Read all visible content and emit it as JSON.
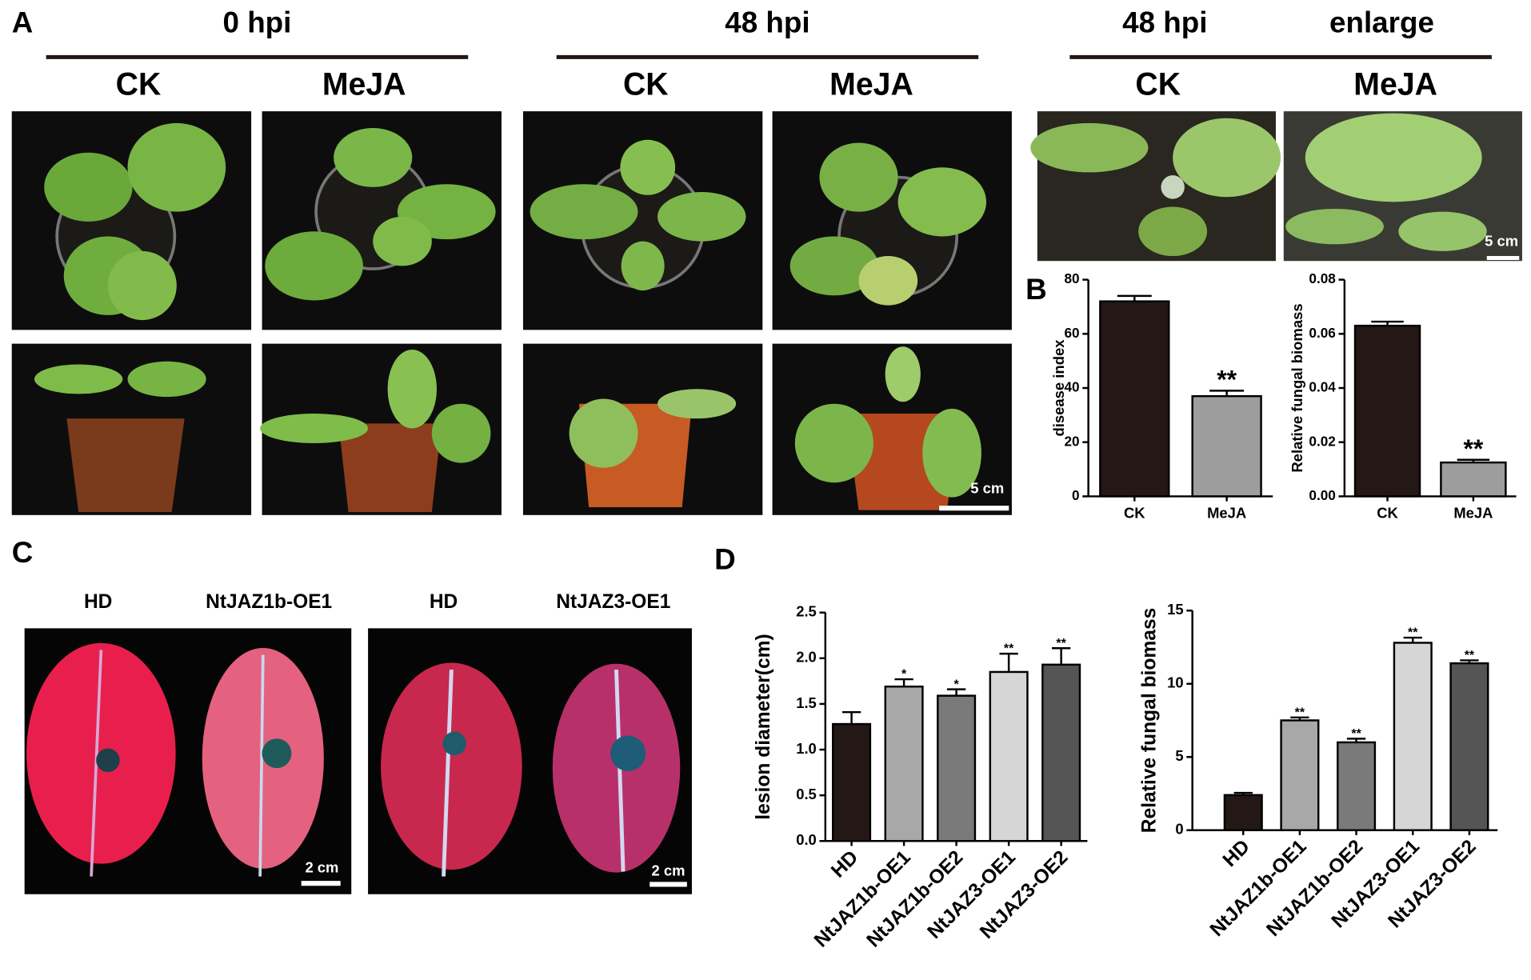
{
  "figure": {
    "panel_a": "A",
    "panel_b": "B",
    "panel_c": "C",
    "panel_d": "D",
    "group_0hpi": "0 hpi",
    "group_48hpi": "48 hpi",
    "group_48hpi_enlarge": "48 hpi",
    "group_enlarge": "enlarge",
    "col_labels": [
      "CK",
      "MeJA",
      "CK",
      "MeJA",
      "CK",
      "MeJA"
    ],
    "scale_bar_a": "5 cm",
    "scale_bar_enlarge": "5 cm",
    "leaf_labels": [
      "HD",
      "NtJAZ1b-OE1",
      "HD",
      "NtJAZ3-OE1"
    ],
    "scale_bar_c1": "2 cm",
    "scale_bar_c2": "2 cm"
  },
  "chart_data": [
    {
      "type": "bar",
      "ylabel": "disease index",
      "categories": [
        "CK",
        "MeJA"
      ],
      "values": [
        72,
        37
      ],
      "errors": [
        2,
        2
      ],
      "colors": [
        "#231815",
        "#9d9d9d"
      ],
      "annotations": [
        null,
        "**"
      ],
      "ylim": [
        0,
        80
      ],
      "yticks": [
        0,
        20,
        40,
        60,
        80
      ]
    },
    {
      "type": "bar",
      "ylabel": "Relative fungal biomass",
      "categories": [
        "CK",
        "MeJA"
      ],
      "values": [
        0.063,
        0.0125
      ],
      "errors": [
        0.0015,
        0.001
      ],
      "colors": [
        "#231815",
        "#9d9d9d"
      ],
      "annotations": [
        null,
        "**"
      ],
      "ylim": [
        0,
        0.08
      ],
      "yticks": [
        {
          "value": 0,
          "label": "0.00"
        },
        0.02,
        0.04,
        0.06,
        0.08
      ]
    },
    {
      "type": "bar",
      "ylabel": "lesion diameter(cm)",
      "categories": [
        "HD",
        "NtJAZ1b-OE1",
        "NtJAZ1b-OE2",
        "NtJAZ3-OE1",
        "NtJAZ3-OE2"
      ],
      "values": [
        1.28,
        1.69,
        1.59,
        1.85,
        1.93
      ],
      "errors": [
        0.13,
        0.08,
        0.07,
        0.2,
        0.18
      ],
      "colors": [
        "#231815",
        "#a8a8a8",
        "#7a7a7a",
        "#d6d6d6",
        "#555555"
      ],
      "annotations": [
        null,
        "*",
        "*",
        "**",
        "**"
      ],
      "ylim": [
        0,
        2.5
      ],
      "yticks": [
        {
          "value": 0,
          "label": "0.0"
        },
        0.5,
        {
          "value": 1,
          "label": "1.0"
        },
        1.5,
        {
          "value": 2,
          "label": "2.0"
        },
        2.5
      ]
    },
    {
      "type": "bar",
      "ylabel": "Relative fungal biomass",
      "categories": [
        "HD",
        "NtJAZ1b-OE1",
        "NtJAZ1b-OE2",
        "NtJAZ3-OE1",
        "NtJAZ3-OE2"
      ],
      "values": [
        2.4,
        7.5,
        6.0,
        12.8,
        11.4
      ],
      "errors": [
        0.15,
        0.2,
        0.25,
        0.35,
        0.2
      ],
      "colors": [
        "#231815",
        "#a8a8a8",
        "#7a7a7a",
        "#d6d6d6",
        "#555555"
      ],
      "annotations": [
        null,
        "**",
        "**",
        "**",
        "**"
      ],
      "ylim": [
        0,
        15
      ],
      "yticks": [
        0,
        5,
        10,
        15
      ]
    }
  ]
}
